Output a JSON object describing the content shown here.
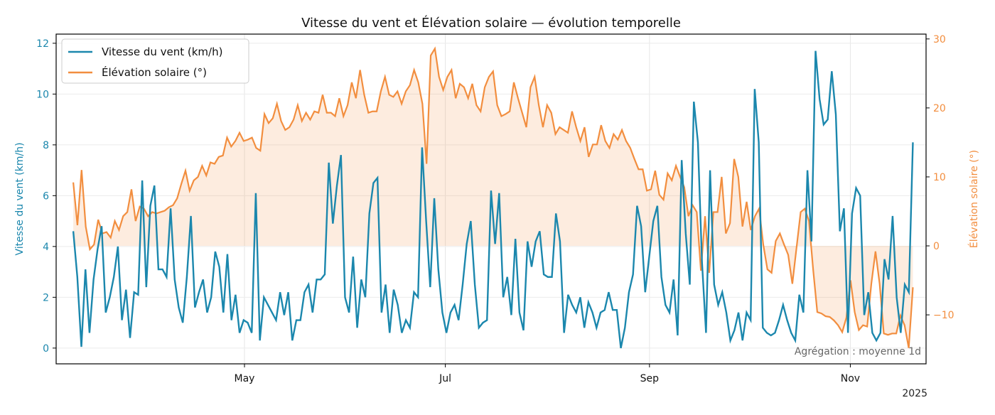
{
  "chart_data": {
    "type": "line",
    "title": "Vitesse du vent et Élévation solaire — évolution temporelle",
    "xlabel": "",
    "year_label": "2025",
    "x_start": "2025-03-10",
    "x_end": "2025-11-20",
    "x_start_doy": 69,
    "x_end_doy": 324,
    "xlim_doy": [
      63.8,
      328
    ],
    "x_ticks": [
      {
        "label": "May",
        "doy": 121
      },
      {
        "label": "Jul",
        "doy": 182
      },
      {
        "label": "Sep",
        "doy": 244
      },
      {
        "label": "Nov",
        "doy": 305
      }
    ],
    "left_axis": {
      "label": "Vitesse du vent (km/h)",
      "ylim": [
        -0.62,
        12.36
      ],
      "ticks": [
        "0",
        "2",
        "4",
        "6",
        "8",
        "10",
        "12"
      ],
      "color": "#1b87ad"
    },
    "right_axis": {
      "label": "Élévation solaire (°)",
      "ylim": [
        -17.1,
        30.7
      ],
      "ticks": [
        "−10",
        "0",
        "10",
        "20",
        "30"
      ],
      "tick_values": [
        -10,
        0,
        10,
        20,
        30
      ],
      "color": "#f28e3f"
    },
    "legend": {
      "placement": "top-left",
      "entries": [
        "Vitesse du vent (km/h)",
        "Élévation solaire (°)"
      ]
    },
    "annotation": "Agrégation : moyenne 1d",
    "grid": true,
    "series": [
      {
        "name": "Vitesse du vent (km/h)",
        "axis": "left",
        "color": "#1b87ad",
        "values": [
          4.6,
          2.8,
          0.05,
          3.1,
          0.6,
          2.7,
          3.9,
          4.8,
          1.4,
          2,
          2.8,
          4,
          1.1,
          2.3,
          0.4,
          2.2,
          2.1,
          6.6,
          2.4,
          5.6,
          6.4,
          3.1,
          3.1,
          2.8,
          5.5,
          2.7,
          1.6,
          1,
          2.8,
          5.2,
          1.6,
          2.2,
          2.7,
          1.4,
          2,
          3.8,
          3.2,
          1.4,
          3.7,
          1.1,
          2.1,
          0.6,
          1.1,
          1,
          0.6,
          6.1,
          0.3,
          2,
          1.7,
          1.4,
          1.1,
          2.2,
          1.3,
          2.2,
          0.3,
          1.1,
          1.1,
          2.2,
          2.5,
          1.4,
          2.7,
          2.7,
          2.9,
          7.3,
          4.9,
          6.4,
          7.6,
          2,
          1.4,
          3.6,
          0.8,
          2.7,
          2,
          5.3,
          6.5,
          6.7,
          1.4,
          2.5,
          0.6,
          2.3,
          1.7,
          0.6,
          1.1,
          0.8,
          2.2,
          2,
          7.9,
          5,
          2.4,
          5.9,
          3.1,
          1.4,
          0.6,
          1.4,
          1.7,
          1.1,
          2.5,
          4.1,
          5,
          2.5,
          0.8,
          1,
          1.1,
          6.2,
          4.1,
          6.1,
          2,
          2.8,
          1.3,
          4.3,
          1.4,
          0.7,
          4.2,
          3.2,
          4.2,
          4.6,
          2.9,
          2.8,
          2.8,
          5.3,
          4.2,
          0.6,
          2.1,
          1.7,
          1.4,
          2,
          0.8,
          1.8,
          1.4,
          0.8,
          1.4,
          1.5,
          2.2,
          1.5,
          1.5,
          0,
          0.8,
          2.2,
          2.9,
          5.6,
          4.8,
          2.2,
          3.6,
          5,
          5.6,
          2.8,
          1.7,
          1.4,
          2.7,
          0.5,
          7.4,
          4.5,
          2.5,
          9.7,
          8.1,
          3.4,
          0.6,
          7,
          2.5,
          1.7,
          2.2,
          1.4,
          0.3,
          0.7,
          1.4,
          0.3,
          1.4,
          1.1,
          10.2,
          8.1,
          0.8,
          0.6,
          0.5,
          0.6,
          1.1,
          1.7,
          1.1,
          0.6,
          0.3,
          2.1,
          1.4,
          7,
          4.2,
          11.7,
          9.8,
          8.8,
          9,
          10.9,
          9.2,
          4.6,
          5.5,
          0.6,
          5.3,
          6.3,
          6,
          1.3,
          2.2,
          0.6,
          0.3,
          0.6,
          3.5,
          2.7,
          5.2,
          2,
          0.6,
          2.5,
          2.2,
          8.1
        ]
      },
      {
        "name": "Élévation solaire (°)",
        "axis": "right",
        "color": "#f28e3f",
        "fill": true,
        "values": [
          9.2,
          3,
          11,
          2.8,
          -0.5,
          0.2,
          3.8,
          1.8,
          2,
          1.2,
          3.6,
          2.3,
          4.3,
          4.9,
          8.2,
          3.6,
          5.7,
          5.4,
          4.3,
          4.9,
          4.7,
          4.9,
          5.1,
          5.6,
          5.9,
          6.9,
          9,
          10.9,
          8,
          9.5,
          10,
          11.6,
          10.2,
          12.1,
          11.9,
          12.9,
          13.1,
          15.7,
          14.4,
          15.2,
          16.4,
          15.2,
          15.4,
          15.7,
          14.2,
          13.8,
          19.1,
          17.8,
          18.5,
          20.6,
          18.1,
          16.8,
          17.2,
          18.3,
          20.4,
          18.1,
          19.3,
          18.3,
          19.5,
          19.3,
          21.9,
          19.3,
          19.3,
          18.8,
          21.4,
          18.8,
          20.4,
          23.7,
          21.4,
          25.5,
          21.9,
          19.3,
          19.5,
          19.5,
          22.4,
          24.5,
          21.9,
          21.6,
          22.4,
          20.6,
          22.4,
          23.3,
          25.5,
          23.7,
          20.6,
          11.9,
          27.6,
          28.6,
          24.5,
          22.6,
          24.5,
          25.5,
          21.4,
          23.5,
          23,
          21.4,
          23.5,
          20.4,
          19.5,
          23,
          24.5,
          25.3,
          20.4,
          18.8,
          19.1,
          19.5,
          23.7,
          21.4,
          19.3,
          17.2,
          23,
          24.5,
          20.4,
          17.2,
          20.4,
          19.3,
          16.2,
          17.2,
          16.8,
          16.4,
          19.5,
          17.2,
          15.2,
          17.2,
          12.9,
          14.7,
          14.7,
          17.5,
          15.2,
          14.2,
          16.2,
          15.4,
          16.8,
          15.2,
          14.2,
          12.6,
          11.1,
          11.1,
          8,
          8.2,
          10.9,
          7.4,
          6.7,
          10.5,
          9.5,
          11.6,
          10,
          8.5,
          4.3,
          5.9,
          4.9,
          -3.6,
          4.3,
          -3.9,
          4.9,
          4.9,
          10,
          1.8,
          3.3,
          12.6,
          10,
          2.8,
          6.4,
          2.3,
          4.3,
          5.4,
          0.2,
          -3.4,
          -3.9,
          0.7,
          1.8,
          0.2,
          -1.3,
          -5.5,
          -0.3,
          4.9,
          5.4,
          3.6,
          -3.4,
          -9.6,
          -9.8,
          -10.2,
          -10.3,
          -10.8,
          -11.5,
          -12.5,
          -10.4,
          -5,
          -9.6,
          -12.2,
          -11.5,
          -11.7,
          -5.5,
          -0.8,
          -5.5,
          -12.7,
          -12.9,
          -12.7,
          -12.7,
          -10.1,
          -11.5,
          -14.8,
          -6
        ]
      }
    ]
  }
}
